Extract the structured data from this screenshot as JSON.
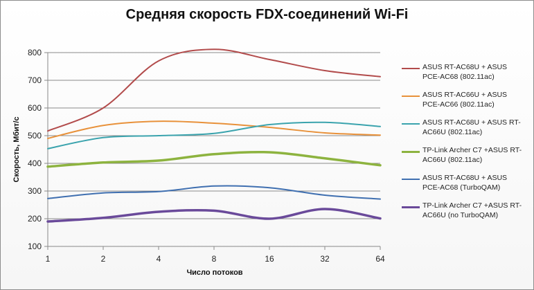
{
  "chart_data": {
    "type": "line",
    "title": "Средняя скорость FDX-соединений Wi-Fi",
    "xlabel": "Число потоков",
    "ylabel": "Скорость, Мбит/с",
    "categories": [
      "1",
      "2",
      "4",
      "8",
      "16",
      "32",
      "64"
    ],
    "ylim": [
      100,
      800
    ],
    "yticks": [
      100,
      200,
      300,
      400,
      500,
      600,
      700,
      800
    ],
    "grid": "horizontal",
    "legend_position": "right",
    "series": [
      {
        "name": "ASUS RT-AC68U + ASUS PCE-AC68 (802.11ac)",
        "color": "#b24b4b",
        "width": 2,
        "values": [
          517,
          600,
          770,
          812,
          775,
          735,
          713
        ]
      },
      {
        "name": "ASUS RT-AC66U + ASUS PCE-AC66 (802.11ac)",
        "color": "#e8913a",
        "width": 2,
        "values": [
          490,
          537,
          552,
          545,
          530,
          510,
          502
        ]
      },
      {
        "name": "ASUS RT-AC68U + ASUS RT-AC66U (802.11ac)",
        "color": "#3aa3ad",
        "width": 2,
        "values": [
          453,
          493,
          500,
          508,
          540,
          548,
          533
        ]
      },
      {
        "name": "TP-Link Archer C7 +ASUS RT-AC66U (802.11ac)",
        "color": "#8db33f",
        "width": 3.5,
        "values": [
          388,
          403,
          410,
          433,
          440,
          418,
          393
        ]
      },
      {
        "name": "ASUS RT-AC68U + ASUS PCE-AC68 (TurboQAM)",
        "color": "#3f6fb0",
        "width": 2,
        "values": [
          273,
          293,
          298,
          318,
          312,
          285,
          271
        ]
      },
      {
        "name": "TP-Link Archer C7 +ASUS RT-AC66U (no TurboQAM)",
        "color": "#6a4a9a",
        "width": 3.5,
        "values": [
          190,
          203,
          225,
          229,
          200,
          235,
          201
        ]
      }
    ]
  }
}
